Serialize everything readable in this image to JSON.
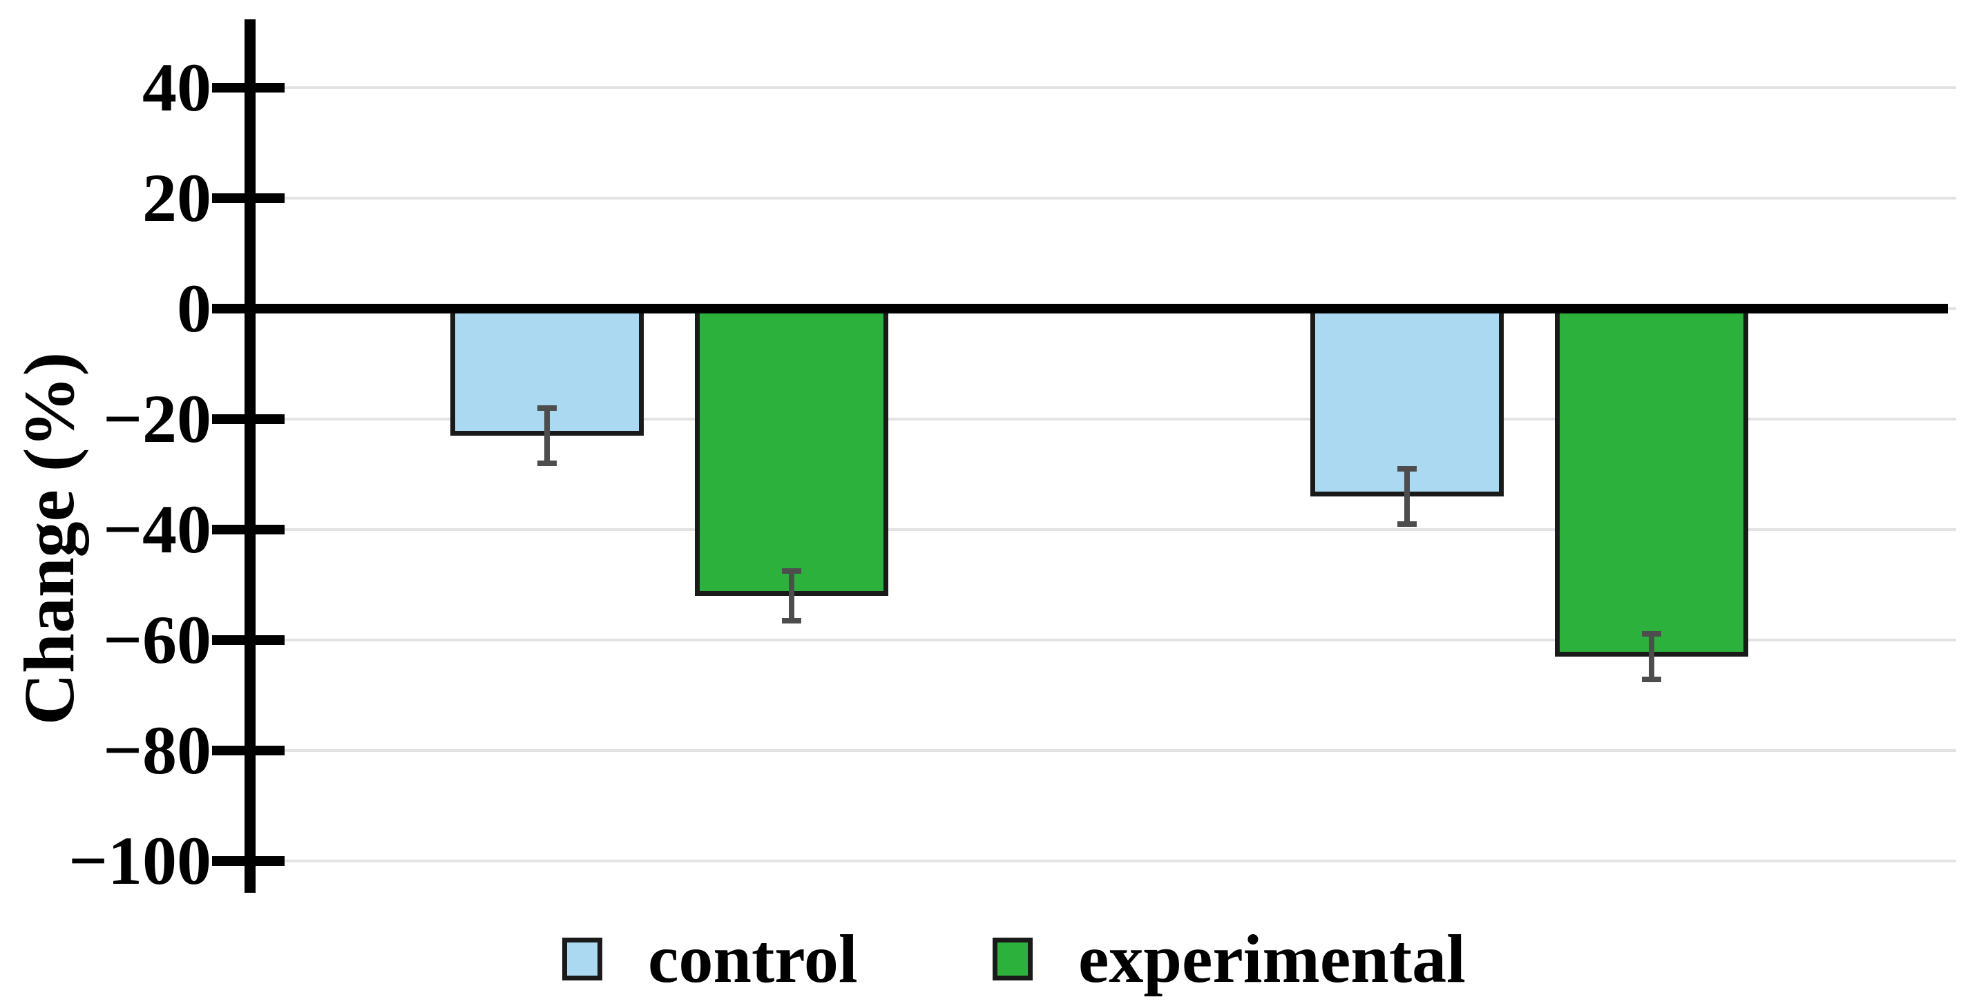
{
  "figure": {
    "background": "#ffffff"
  },
  "chart_data": {
    "type": "bar",
    "title": "",
    "xlabel": "",
    "ylabel": "Change (%)",
    "ylim": [
      -107,
      52
    ],
    "grid": true,
    "legend_position": "bottom",
    "categories": [
      "",
      ""
    ],
    "yticks": [
      {
        "value": 40,
        "label": "40"
      },
      {
        "value": 20,
        "label": "20"
      },
      {
        "value": 0,
        "label": "0"
      },
      {
        "value": -20,
        "label": "−20"
      },
      {
        "value": -40,
        "label": "−40"
      },
      {
        "value": -60,
        "label": "−60"
      },
      {
        "value": -80,
        "label": "−80"
      },
      {
        "value": -100,
        "label": "−100"
      }
    ],
    "series": [
      {
        "name": "control",
        "color": "#ABD9F1",
        "values": [
          -23,
          -34
        ],
        "errors": [
          5.5,
          5.5
        ]
      },
      {
        "name": "experimental",
        "color": "#2DB13D",
        "values": [
          -52,
          -63
        ],
        "errors": [
          5.0,
          4.6
        ]
      }
    ],
    "colors": {
      "bar_border": "#1a1a1a",
      "error_bar": "#4d4d4d",
      "gridline": "#e3e3e3",
      "axis": "#000000",
      "zero_line": "#000000"
    }
  }
}
